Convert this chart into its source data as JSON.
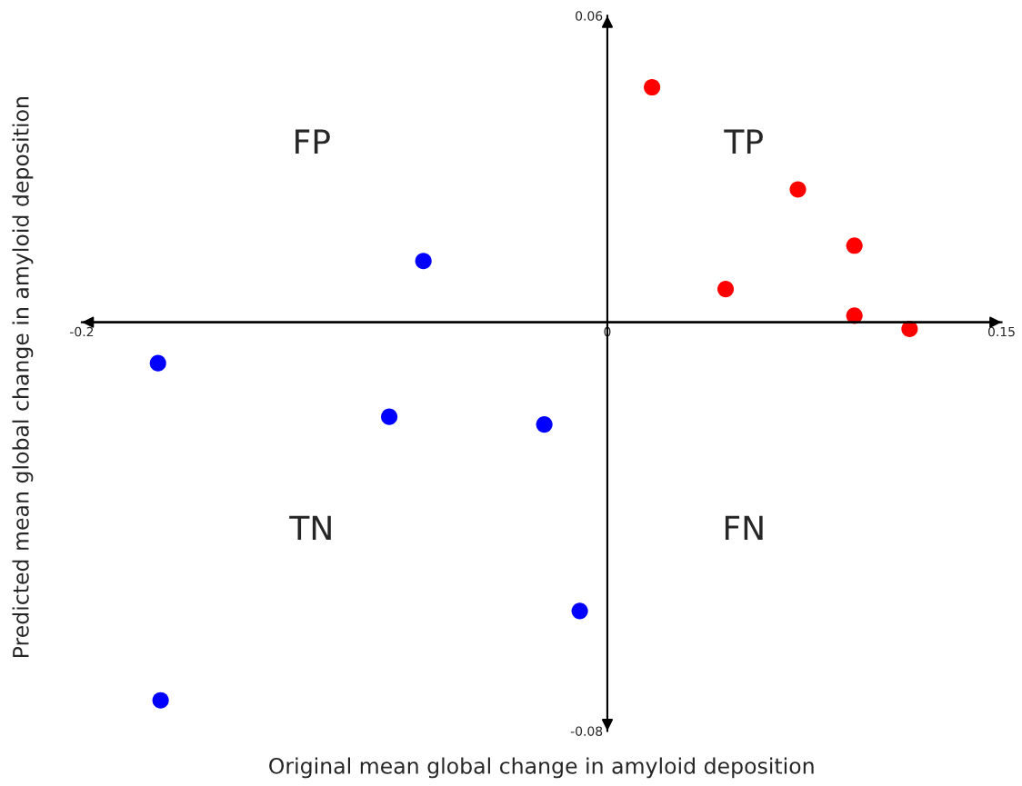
{
  "chart_data": {
    "type": "scatter",
    "xlabel": "Original mean global change in amyloid deposition",
    "ylabel": "Predicted mean global change in amyloid deposition",
    "series": [
      {
        "color": "#ff0000",
        "x": [
          0.017,
          0.0725,
          0.094,
          0.045,
          0.094,
          0.115
        ],
        "values": [
          0.046,
          0.026,
          0.015,
          0.0065,
          0.0013,
          -0.0013
        ]
      },
      {
        "color": "#0000ff",
        "x": [
          -0.07,
          -0.171,
          -0.083,
          -0.024,
          -0.0105,
          -0.17
        ],
        "values": [
          0.012,
          -0.008,
          -0.0185,
          -0.02,
          -0.0565,
          -0.074
        ]
      }
    ],
    "xlim": [
      -0.2,
      0.15
    ],
    "ylim": [
      -0.08,
      0.06
    ],
    "xticks": [
      -0.2,
      0,
      0.15
    ],
    "yticks": [
      -0.08,
      0.06
    ],
    "marker": "circle",
    "grid": false,
    "legend": false,
    "annotations": [
      "FP",
      "TP",
      "TN",
      "FN"
    ]
  }
}
